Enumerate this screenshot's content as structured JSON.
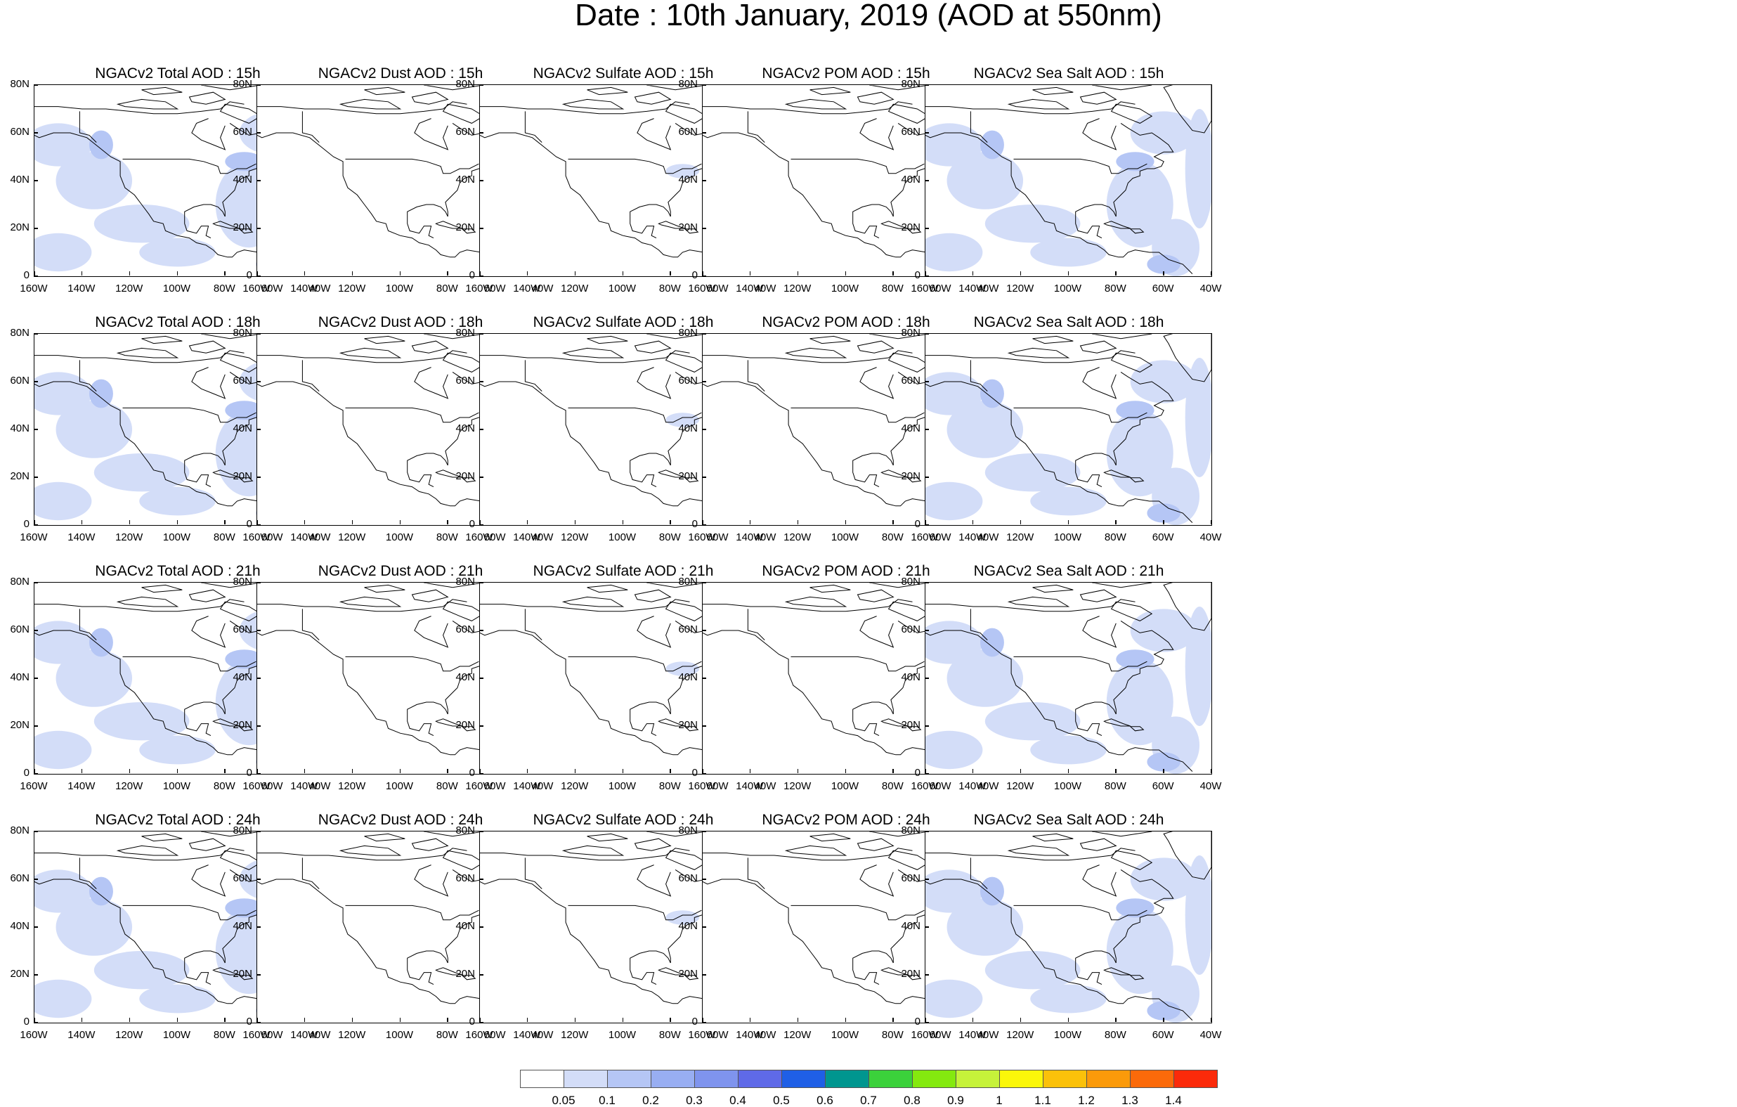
{
  "title": "Date : 10th January, 2019 (AOD at 550nm)",
  "columns": [
    {
      "key": "total",
      "colored": true
    },
    {
      "key": "dust",
      "colored": false
    },
    {
      "key": "sulfate",
      "colored": false
    },
    {
      "key": "pom",
      "colored": false
    },
    {
      "key": "seasalt",
      "colored": true
    }
  ],
  "panel_titles": [
    [
      "NGACv2 Total AOD : 15h",
      "NGACv2 Dust AOD : 15h",
      "NGACv2 Sulfate AOD : 15h",
      "NGACv2 POM AOD : 15h",
      "NGACv2 Sea Salt AOD : 15h"
    ],
    [
      "NGACv2 Total AOD : 18h",
      "NGACv2 Dust AOD : 18h",
      "NGACv2 Sulfate AOD : 18h",
      "NGACv2 POM AOD : 18h",
      "NGACv2 Sea Salt AOD : 18h"
    ],
    [
      "NGACv2 Total AOD : 21h",
      "NGACv2 Dust AOD : 21h",
      "NGACv2 Sulfate AOD : 21h",
      "NGACv2 POM AOD : 21h",
      "NGACv2 Sea Salt AOD : 21h"
    ],
    [
      "NGACv2 Total AOD : 24h",
      "NGACv2 Dust AOD : 24h",
      "NGACv2 Sulfate AOD : 24h",
      "NGACv2 POM AOD : 24h",
      "NGACv2 Sea Salt  AOD : 24h"
    ]
  ],
  "lat_labels": [
    "80N",
    "60N",
    "40N",
    "20N",
    "0"
  ],
  "lon_labels": [
    "160W",
    "140W",
    "120W",
    "100W",
    "80W",
    "60W",
    "40W"
  ],
  "colorbar": {
    "labels": [
      "0.05",
      "0.1",
      "0.2",
      "0.3",
      "0.4",
      "0.5",
      "0.6",
      "0.7",
      "0.8",
      "0.9",
      "1",
      "1.1",
      "1.2",
      "1.3",
      "1.4"
    ],
    "colors": [
      "#ffffff",
      "#d3ddf8",
      "#b5c6f5",
      "#98aef2",
      "#7f94ee",
      "#5f6ae8",
      "#1f5fe6",
      "#00968f",
      "#3bd13b",
      "#84e90f",
      "#c6f23a",
      "#fbf70a",
      "#fbc10a",
      "#fb9a0a",
      "#fb6a0a",
      "#fb2a0a"
    ]
  },
  "map_colors": {
    "coast": "#000000",
    "light_aod": "#d3ddf8",
    "mid_aod": "#b5c6f5"
  }
}
